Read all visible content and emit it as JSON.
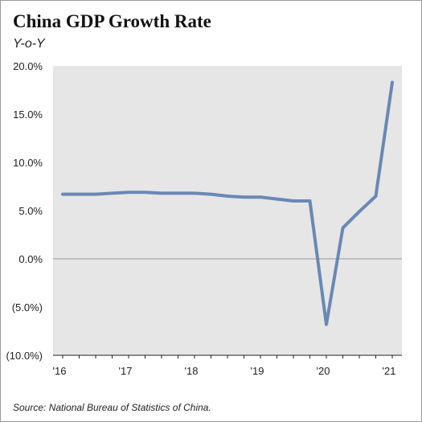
{
  "chart_data": {
    "type": "line",
    "title": "China GDP Growth Rate",
    "subtitle": "Y-o-Y",
    "source": "Source: National Bureau of Statistics of China.",
    "x_tick_labels": [
      "'16",
      "'17",
      "'18",
      "'19",
      "'20",
      "'21"
    ],
    "y_tick_labels": [
      "20.0%",
      "15.0%",
      "10.0%",
      "5.0%",
      "0.0%",
      "(5.0%)",
      "(10.0%)"
    ],
    "y_ticks": [
      20,
      15,
      10,
      5,
      0,
      -5,
      -10
    ],
    "ylim": [
      -10,
      20
    ],
    "xlim": [
      2016,
      2021
    ],
    "grid": false,
    "zero_line": true,
    "series": [
      {
        "color": "#6a88b4",
        "x": [
          2016.0,
          2016.25,
          2016.5,
          2016.75,
          2017.0,
          2017.25,
          2017.5,
          2017.75,
          2018.0,
          2018.25,
          2018.5,
          2018.75,
          2019.0,
          2019.25,
          2019.5,
          2019.75,
          2020.0,
          2020.25,
          2020.5,
          2020.75,
          2021.0
        ],
        "y": [
          6.7,
          6.7,
          6.7,
          6.8,
          6.9,
          6.9,
          6.8,
          6.8,
          6.8,
          6.7,
          6.5,
          6.4,
          6.4,
          6.2,
          6.0,
          6.0,
          -6.8,
          3.2,
          4.9,
          6.5,
          18.3
        ]
      }
    ]
  }
}
